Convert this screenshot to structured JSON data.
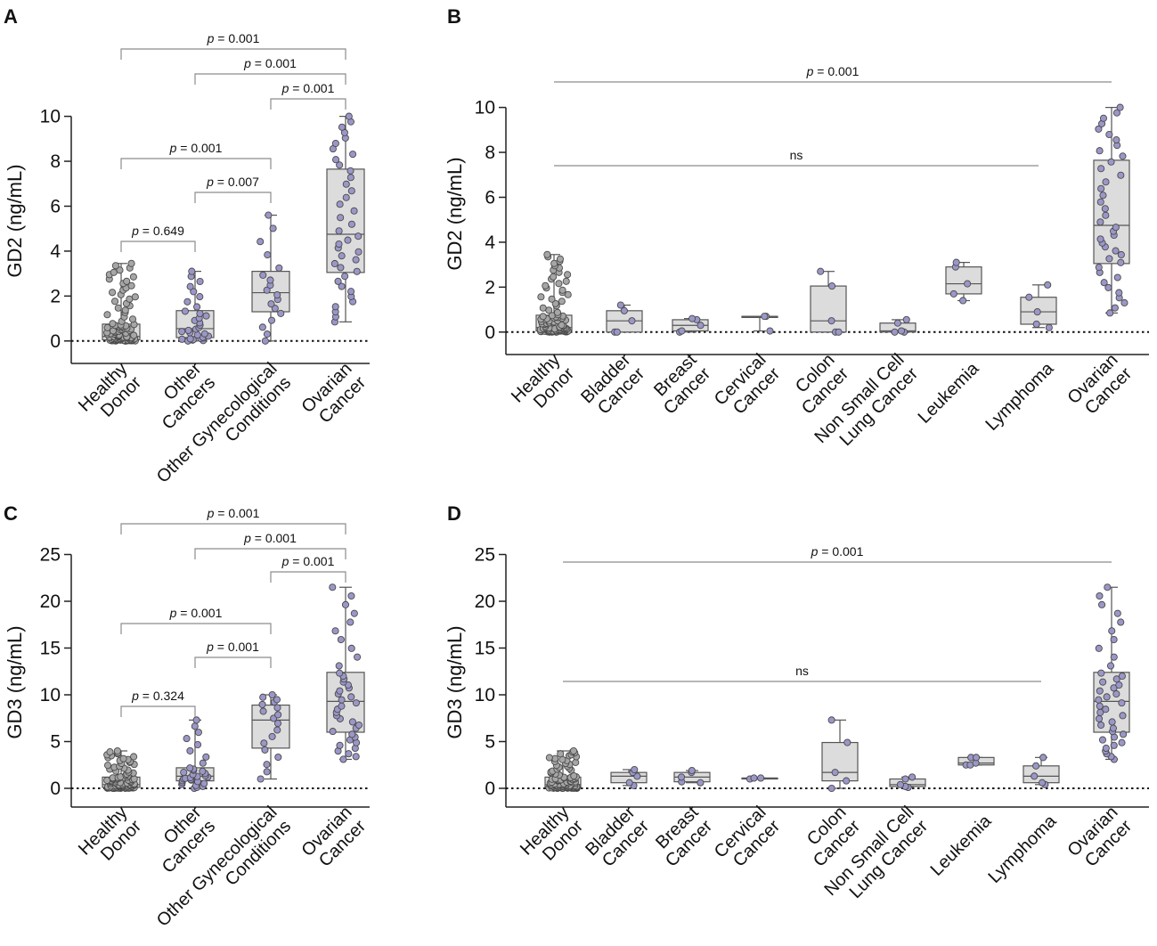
{
  "chart_data": [
    {
      "panel": "A",
      "type": "boxplot",
      "ylabel": "GD2 (ng/mL)",
      "ylim": [
        -1,
        10.5
      ],
      "yticks": [
        0,
        2,
        4,
        6,
        8,
        10
      ],
      "categories": [
        [
          "Healthy",
          "Donor"
        ],
        [
          "Other",
          "Cancers"
        ],
        [
          "Other Gynecological",
          "Conditions"
        ],
        [
          "Ovarian",
          "Cancer"
        ]
      ],
      "boxes": [
        {
          "q1": 0.05,
          "median": 0.2,
          "q3": 0.75,
          "min": 0.0,
          "max": 3.45,
          "n": 110
        },
        {
          "q1": 0.15,
          "median": 0.55,
          "q3": 1.35,
          "min": 0.0,
          "max": 3.1,
          "n": 32
        },
        {
          "q1": 1.3,
          "median": 2.15,
          "q3": 3.1,
          "min": 0.0,
          "max": 5.6,
          "n": 18
        },
        {
          "q1": 3.05,
          "median": 4.75,
          "q3": 7.65,
          "min": 0.85,
          "max": 10.0,
          "n": 40
        }
      ],
      "comparisons": [
        {
          "from": 0,
          "to": 3,
          "label": "= 0.001"
        },
        {
          "from": 1,
          "to": 3,
          "label": "= 0.001"
        },
        {
          "from": 2,
          "to": 3,
          "label": "= 0.001"
        },
        {
          "from": 0,
          "to": 2,
          "label": "= 0.001"
        },
        {
          "from": 1,
          "to": 2,
          "label": "= 0.007"
        },
        {
          "from": 0,
          "to": 1,
          "label": "= 0.649"
        }
      ]
    },
    {
      "panel": "B",
      "type": "boxplot",
      "ylabel": "GD2 (ng/mL)",
      "ylim": [
        -1,
        10.5
      ],
      "yticks": [
        0,
        2,
        4,
        6,
        8,
        10
      ],
      "categories": [
        [
          "Healthy",
          "Donor"
        ],
        [
          "Bladder",
          "Cancer"
        ],
        [
          "Breast",
          "Cancer"
        ],
        [
          "Cervical",
          "Cancer"
        ],
        [
          "Colon",
          "Cancer"
        ],
        [
          "Non Small Cell",
          "Lung Cancer"
        ],
        [
          "Leukemia"
        ],
        [
          "Lymphoma"
        ],
        [
          "Ovarian",
          "Cancer"
        ]
      ],
      "boxes": [
        {
          "q1": 0.05,
          "median": 0.2,
          "q3": 0.75,
          "min": 0.0,
          "max": 3.45,
          "n": 110
        },
        {
          "q1": 0.0,
          "median": 0.5,
          "q3": 0.95,
          "min": 0.0,
          "max": 1.2,
          "n": 5
        },
        {
          "q1": 0.05,
          "median": 0.3,
          "q3": 0.55,
          "min": 0.0,
          "max": 0.6,
          "n": 5
        },
        {
          "q1": 0.65,
          "median": 0.7,
          "q3": 0.7,
          "min": 0.05,
          "max": 0.7,
          "n": 3
        },
        {
          "q1": 0.0,
          "median": 0.5,
          "q3": 2.05,
          "min": 0.0,
          "max": 2.7,
          "n": 5
        },
        {
          "q1": 0.0,
          "median": 0.05,
          "q3": 0.4,
          "min": 0.0,
          "max": 0.55,
          "n": 5
        },
        {
          "q1": 1.7,
          "median": 2.15,
          "q3": 2.9,
          "min": 1.4,
          "max": 3.1,
          "n": 5
        },
        {
          "q1": 0.35,
          "median": 0.9,
          "q3": 1.55,
          "min": 0.2,
          "max": 2.1,
          "n": 5
        },
        {
          "q1": 3.05,
          "median": 4.75,
          "q3": 7.65,
          "min": 0.85,
          "max": 10.0,
          "n": 40
        }
      ],
      "comparisons": [
        {
          "from": 0,
          "to": 8,
          "label": "= 0.001"
        },
        {
          "from": 0,
          "to": 7,
          "label": "ns"
        }
      ]
    },
    {
      "panel": "C",
      "type": "boxplot",
      "ylabel": "GD3 (ng/mL)",
      "ylim": [
        -2,
        26
      ],
      "yticks": [
        0,
        5,
        10,
        15,
        20,
        25
      ],
      "categories": [
        [
          "Healthy",
          "Donor"
        ],
        [
          "Other",
          "Cancers"
        ],
        [
          "Other Gynecological",
          "Conditions"
        ],
        [
          "Ovarian",
          "Cancer"
        ]
      ],
      "boxes": [
        {
          "q1": 0.1,
          "median": 0.4,
          "q3": 1.2,
          "min": 0.0,
          "max": 4.0,
          "n": 110
        },
        {
          "q1": 0.8,
          "median": 1.3,
          "q3": 2.2,
          "min": 0.0,
          "max": 7.3,
          "n": 32
        },
        {
          "q1": 4.3,
          "median": 7.3,
          "q3": 8.9,
          "min": 1.0,
          "max": 10.0,
          "n": 18
        },
        {
          "q1": 6.0,
          "median": 9.3,
          "q3": 12.4,
          "min": 3.1,
          "max": 21.5,
          "n": 40
        }
      ],
      "comparisons": [
        {
          "from": 0,
          "to": 3,
          "label": "= 0.001"
        },
        {
          "from": 1,
          "to": 3,
          "label": "= 0.001"
        },
        {
          "from": 2,
          "to": 3,
          "label": "= 0.001"
        },
        {
          "from": 0,
          "to": 2,
          "label": "= 0.001"
        },
        {
          "from": 1,
          "to": 2,
          "label": "= 0.001"
        },
        {
          "from": 0,
          "to": 1,
          "label": "= 0.324"
        }
      ]
    },
    {
      "panel": "D",
      "type": "boxplot",
      "ylabel": "GD3 (ng/mL)",
      "ylim": [
        -2,
        26
      ],
      "yticks": [
        0,
        5,
        10,
        15,
        20,
        25
      ],
      "categories": [
        [
          "Healthy",
          "Donor"
        ],
        [
          "Bladder",
          "Cancer"
        ],
        [
          "Breast",
          "Cancer"
        ],
        [
          "Cervical",
          "Cancer"
        ],
        [
          "Colon",
          "Cancer"
        ],
        [
          "Non Small Cell",
          "Lung Cancer"
        ],
        [
          "Leukemia"
        ],
        [
          "Lymphoma"
        ],
        [
          "Ovarian",
          "Cancer"
        ]
      ],
      "boxes": [
        {
          "q1": 0.1,
          "median": 0.4,
          "q3": 1.2,
          "min": 0.0,
          "max": 4.0,
          "n": 110
        },
        {
          "q1": 0.6,
          "median": 1.3,
          "q3": 1.7,
          "min": 0.3,
          "max": 2.0,
          "n": 5
        },
        {
          "q1": 0.7,
          "median": 1.2,
          "q3": 1.7,
          "min": 0.6,
          "max": 1.9,
          "n": 5
        },
        {
          "q1": 1.0,
          "median": 1.1,
          "q3": 1.1,
          "min": 1.0,
          "max": 1.1,
          "n": 3
        },
        {
          "q1": 0.8,
          "median": 1.7,
          "q3": 4.9,
          "min": 0.0,
          "max": 7.3,
          "n": 5
        },
        {
          "q1": 0.2,
          "median": 0.4,
          "q3": 1.0,
          "min": 0.1,
          "max": 1.2,
          "n": 5
        },
        {
          "q1": 2.5,
          "median": 2.7,
          "q3": 3.3,
          "min": 2.5,
          "max": 3.3,
          "n": 5
        },
        {
          "q1": 0.6,
          "median": 1.3,
          "q3": 2.4,
          "min": 0.4,
          "max": 3.3,
          "n": 5
        },
        {
          "q1": 6.0,
          "median": 9.3,
          "q3": 12.4,
          "min": 3.1,
          "max": 21.5,
          "n": 40
        }
      ],
      "comparisons": [
        {
          "from": 0,
          "to": 8,
          "label": "= 0.001"
        },
        {
          "from": 0,
          "to": 7,
          "label": "ns"
        }
      ]
    }
  ],
  "colors": {
    "box_fill": "#dcdcdc",
    "healthy_point": "#a6a6a6",
    "sample_point": "#9a97c8",
    "point_edge": "#4a4a4a",
    "axis": "#222222",
    "bracket": "#8c8c8c",
    "line": "#555555"
  }
}
